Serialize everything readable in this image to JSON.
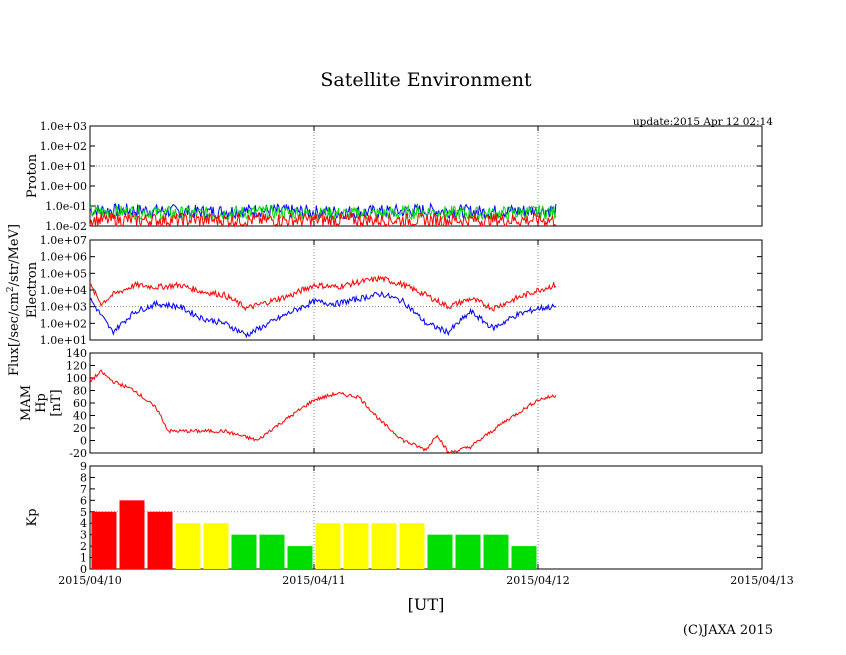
{
  "title": "Satellite Environment",
  "update_text": "update:2015 Apr 12 02:14",
  "copyright": "(C)JAXA 2015",
  "x_axis": {
    "label": "[UT]",
    "ticks": [
      "2015/04/10",
      "2015/04/11",
      "2015/04/12",
      "2015/04/13"
    ]
  },
  "flux_label": "Flux[/sec/cm2/str/MeV]",
  "colors": {
    "red": "#ff0000",
    "blue": "#0000ff",
    "green": "#00dd00",
    "yellow": "#ffff00",
    "grid": "#888888"
  },
  "chart_data": [
    {
      "type": "line",
      "panel": "proton",
      "ylabel": "Proton",
      "yscale": "log",
      "ylim": [
        0.01,
        1000
      ],
      "yticks": [
        "1.0e-02",
        "1.0e-01",
        "1.0e+00",
        "1.0e+01",
        "1.0e+02",
        "1.0e+03"
      ],
      "x_range_days": [
        0,
        3
      ],
      "data_end_day": 2.08,
      "series": [
        {
          "color": "blue",
          "x": [
            0,
            0.25,
            0.5,
            0.75,
            1.0,
            1.25,
            1.5,
            1.75,
            2.0,
            2.08
          ],
          "values": [
            0.06,
            0.06,
            0.05,
            0.06,
            0.05,
            0.05,
            0.06,
            0.05,
            0.06,
            0.06
          ]
        },
        {
          "color": "green",
          "x": [
            0,
            0.25,
            0.5,
            0.75,
            1.0,
            1.25,
            1.5,
            1.75,
            2.0,
            2.08
          ],
          "values": [
            0.05,
            0.05,
            0.04,
            0.05,
            0.04,
            0.04,
            0.05,
            0.04,
            0.05,
            0.05
          ]
        },
        {
          "color": "red",
          "x": [
            0,
            0.25,
            0.5,
            0.75,
            1.0,
            1.25,
            1.5,
            1.75,
            2.0,
            2.08
          ],
          "values": [
            0.02,
            0.02,
            0.02,
            0.02,
            0.02,
            0.02,
            0.02,
            0.02,
            0.02,
            0.02
          ]
        }
      ]
    },
    {
      "type": "line",
      "panel": "electron",
      "ylabel": "Electron",
      "yscale": "log",
      "ylim": [
        10,
        10000000
      ],
      "yticks": [
        "1.0e+01",
        "1.0e+02",
        "1.0e+03",
        "1.0e+04",
        "1.0e+05",
        "1.0e+06",
        "1.0e+07"
      ],
      "series": [
        {
          "color": "red",
          "x": [
            0,
            0.05,
            0.1,
            0.2,
            0.3,
            0.4,
            0.5,
            0.6,
            0.7,
            0.8,
            0.9,
            1.0,
            1.1,
            1.2,
            1.3,
            1.4,
            1.5,
            1.6,
            1.7,
            1.8,
            1.9,
            2.0,
            2.08
          ],
          "values": [
            20000,
            1500,
            5000,
            20000,
            15000,
            20000,
            8000,
            5000,
            800,
            2000,
            5000,
            20000,
            15000,
            30000,
            50000,
            20000,
            5000,
            1000,
            3000,
            800,
            3000,
            10000,
            20000
          ]
        },
        {
          "color": "blue",
          "x": [
            0,
            0.05,
            0.1,
            0.2,
            0.3,
            0.4,
            0.5,
            0.6,
            0.7,
            0.8,
            0.9,
            1.0,
            1.1,
            1.2,
            1.3,
            1.4,
            1.5,
            1.6,
            1.7,
            1.8,
            1.9,
            2.0,
            2.08
          ],
          "values": [
            3000,
            300,
            30,
            500,
            1500,
            1000,
            200,
            100,
            20,
            100,
            500,
            2000,
            1500,
            3000,
            6000,
            2000,
            100,
            30,
            500,
            50,
            300,
            800,
            1000
          ]
        }
      ]
    },
    {
      "type": "line",
      "panel": "mam_hp",
      "ylabel": "MAM Hp [nT]",
      "ylim": [
        -20,
        140
      ],
      "yticks": [
        "-20",
        "0",
        "20",
        "40",
        "60",
        "80",
        "100",
        "120",
        "140"
      ],
      "series": [
        {
          "color": "red",
          "x": [
            0,
            0.05,
            0.1,
            0.2,
            0.3,
            0.35,
            0.45,
            0.6,
            0.75,
            0.8,
            0.9,
            1.0,
            1.1,
            1.2,
            1.3,
            1.4,
            1.5,
            1.55,
            1.6,
            1.7,
            1.85,
            2.0,
            2.08
          ],
          "values": [
            95,
            110,
            95,
            80,
            50,
            15,
            15,
            15,
            0,
            15,
            40,
            65,
            75,
            70,
            30,
            0,
            -15,
            10,
            -20,
            -10,
            30,
            65,
            72
          ]
        }
      ]
    },
    {
      "type": "bar",
      "panel": "kp",
      "ylabel": "Kp",
      "ylim": [
        0,
        9
      ],
      "yticks": [
        "0",
        "1",
        "2",
        "3",
        "4",
        "5",
        "6",
        "7",
        "8",
        "9"
      ],
      "bar_hours": 3,
      "values": [
        5,
        6,
        5,
        4,
        4,
        3,
        3,
        2,
        4,
        4,
        4,
        4,
        3,
        3,
        3,
        2
      ],
      "bar_colors": [
        "red",
        "red",
        "red",
        "yellow",
        "yellow",
        "green",
        "green",
        "green",
        "yellow",
        "yellow",
        "yellow",
        "yellow",
        "green",
        "green",
        "green",
        "green"
      ]
    }
  ]
}
